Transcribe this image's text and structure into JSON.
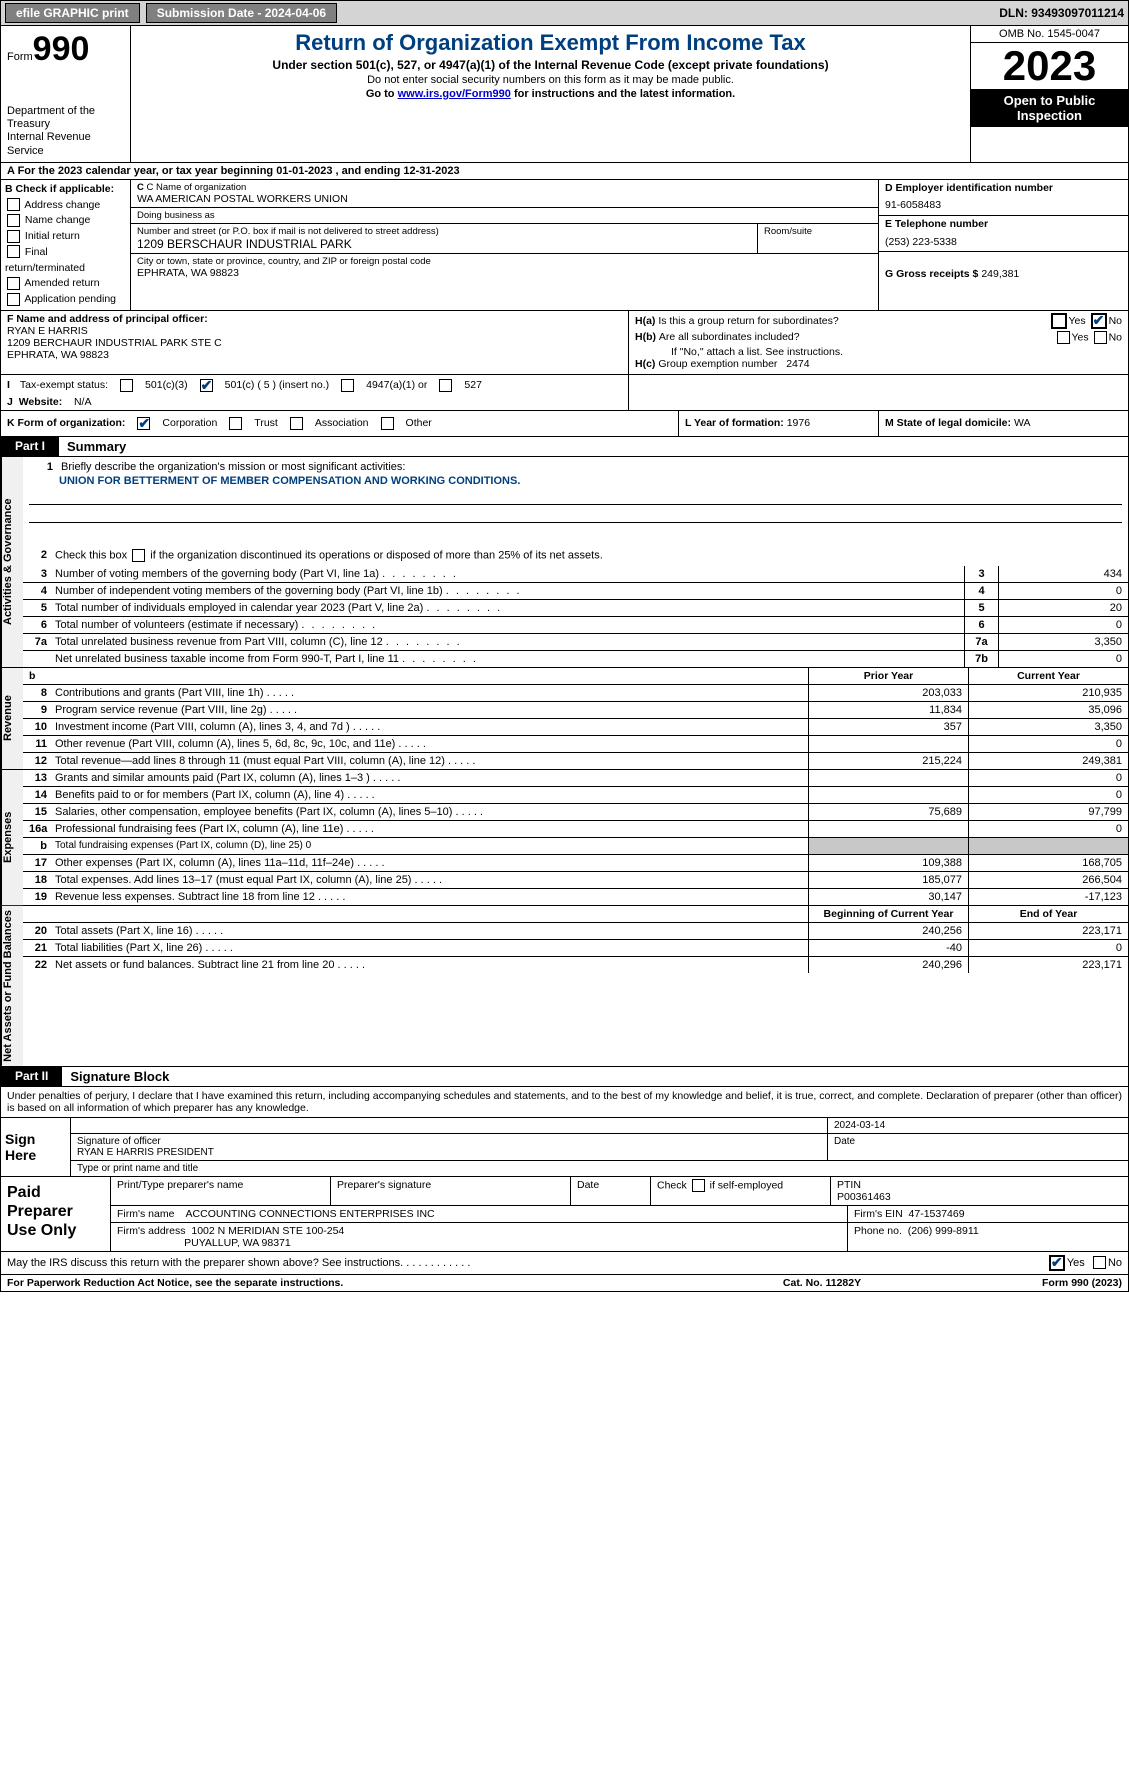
{
  "topbar": {
    "efile": "efile GRAPHIC print",
    "submission": "Submission Date - 2024-04-06",
    "dln": "DLN: 93493097011214"
  },
  "header": {
    "form_prefix": "Form",
    "form_number": "990",
    "dept": "Department of the Treasury\nInternal Revenue Service",
    "title": "Return of Organization Exempt From Income Tax",
    "sub1": "Under section 501(c), 527, or 4947(a)(1) of the Internal Revenue Code (except private foundations)",
    "sub2": "Do not enter social security numbers on this form as it may be made public.",
    "sub3_pre": "Go to ",
    "sub3_link": "www.irs.gov/Form990",
    "sub3_post": " for instructions and the latest information.",
    "omb": "OMB No. 1545-0047",
    "year": "2023",
    "inspect": "Open to Public Inspection"
  },
  "line_a": "A For the 2023 calendar year, or tax year beginning 01-01-2023   , and ending 12-31-2023",
  "b": {
    "label": "B Check if applicable:",
    "opts": [
      "Address change",
      "Name change",
      "Initial return",
      "Final return/terminated",
      "Amended return",
      "Application pending"
    ]
  },
  "c": {
    "name_label": "C Name of organization",
    "name": "WA AMERICAN POSTAL WORKERS UNION",
    "dba_label": "Doing business as",
    "dba": "",
    "street_label": "Number and street (or P.O. box if mail is not delivered to street address)",
    "street": "1209 BERSCHAUR INDUSTRIAL PARK",
    "room_label": "Room/suite",
    "room": "",
    "city_label": "City or town, state or province, country, and ZIP or foreign postal code",
    "city": "EPHRATA, WA  98823"
  },
  "d": {
    "label": "D Employer identification number",
    "value": "91-6058483"
  },
  "e": {
    "label": "E Telephone number",
    "value": "(253) 223-5338"
  },
  "g": {
    "label": "G Gross receipts $",
    "value": "249,381"
  },
  "f": {
    "label": "F  Name and address of principal officer:",
    "name": "RYAN E HARRIS",
    "addr1": "1209 BERCHAUR INDUSTRIAL PARK STE C",
    "addr2": "EPHRATA, WA  98823"
  },
  "h": {
    "a_label": "H(a)",
    "a_text": "Is this a group return for subordinates?",
    "a_yes": false,
    "a_no": true,
    "b_label": "H(b)",
    "b_text": "Are all subordinates included?",
    "b_note": "If \"No,\" attach a list. See instructions.",
    "c_label": "H(c)",
    "c_text": "Group exemption number",
    "c_value": "2474"
  },
  "i": {
    "label": "I",
    "text": "Tax-exempt status:",
    "o1": "501(c)(3)",
    "o2": "501(c) ( 5 ) (insert no.)",
    "o3": "4947(a)(1) or",
    "o4": "527",
    "o2_checked": true
  },
  "j": {
    "label": "J",
    "text": "Website:",
    "value": "N/A"
  },
  "k": {
    "label": "K Form of organization:",
    "opts": [
      "Corporation",
      "Trust",
      "Association",
      "Other"
    ],
    "checked": 0
  },
  "l": {
    "label": "L Year of formation:",
    "value": "1976"
  },
  "m": {
    "label": "M State of legal domicile:",
    "value": "WA"
  },
  "part1": {
    "label": "Part I",
    "title": "Summary",
    "mission_label": "Briefly describe the organization's mission or most significant activities:",
    "mission": "UNION FOR BETTERMENT OF MEMBER COMPENSATION AND WORKING CONDITIONS.",
    "line2": "Check this box    if the organization discontinued its operations or disposed of more than 25% of its net assets.",
    "tab_ag": "Activities & Governance",
    "tab_rev": "Revenue",
    "tab_exp": "Expenses",
    "tab_net": "Net Assets or Fund Balances",
    "rows_num": [
      {
        "n": "3",
        "t": "Number of voting members of the governing body (Part VI, line 1a)",
        "bn": "3",
        "v": "434"
      },
      {
        "n": "4",
        "t": "Number of independent voting members of the governing body (Part VI, line 1b)",
        "bn": "4",
        "v": "0"
      },
      {
        "n": "5",
        "t": "Total number of individuals employed in calendar year 2023 (Part V, line 2a)",
        "bn": "5",
        "v": "20"
      },
      {
        "n": "6",
        "t": "Total number of volunteers (estimate if necessary)",
        "bn": "6",
        "v": "0"
      },
      {
        "n": "7a",
        "t": "Total unrelated business revenue from Part VIII, column (C), line 12",
        "bn": "7a",
        "v": "3,350"
      },
      {
        "n": "",
        "t": "Net unrelated business taxable income from Form 990-T, Part I, line 11",
        "bn": "7b",
        "v": "0"
      }
    ],
    "prior_label": "Prior Year",
    "current_label": "Current Year",
    "rev_rows": [
      {
        "n": "8",
        "t": "Contributions and grants (Part VIII, line 1h)",
        "c1": "203,033",
        "c2": "210,935"
      },
      {
        "n": "9",
        "t": "Program service revenue (Part VIII, line 2g)",
        "c1": "11,834",
        "c2": "35,096"
      },
      {
        "n": "10",
        "t": "Investment income (Part VIII, column (A), lines 3, 4, and 7d )",
        "c1": "357",
        "c2": "3,350"
      },
      {
        "n": "11",
        "t": "Other revenue (Part VIII, column (A), lines 5, 6d, 8c, 9c, 10c, and 11e)",
        "c1": "",
        "c2": "0"
      },
      {
        "n": "12",
        "t": "Total revenue—add lines 8 through 11 (must equal Part VIII, column (A), line 12)",
        "c1": "215,224",
        "c2": "249,381"
      }
    ],
    "exp_rows": [
      {
        "n": "13",
        "t": "Grants and similar amounts paid (Part IX, column (A), lines 1–3 )",
        "c1": "",
        "c2": "0"
      },
      {
        "n": "14",
        "t": "Benefits paid to or for members (Part IX, column (A), line 4)",
        "c1": "",
        "c2": "0"
      },
      {
        "n": "15",
        "t": "Salaries, other compensation, employee benefits (Part IX, column (A), lines 5–10)",
        "c1": "75,689",
        "c2": "97,799"
      },
      {
        "n": "16a",
        "t": "Professional fundraising fees (Part IX, column (A), line 11e)",
        "c1": "",
        "c2": "0"
      },
      {
        "n": "b",
        "t": "Total fundraising expenses (Part IX, column (D), line 25) 0",
        "c1": "grey",
        "c2": "grey",
        "small": true
      },
      {
        "n": "17",
        "t": "Other expenses (Part IX, column (A), lines 11a–11d, 11f–24e)",
        "c1": "109,388",
        "c2": "168,705"
      },
      {
        "n": "18",
        "t": "Total expenses. Add lines 13–17 (must equal Part IX, column (A), line 25)",
        "c1": "185,077",
        "c2": "266,504"
      },
      {
        "n": "19",
        "t": "Revenue less expenses. Subtract line 18 from line 12",
        "c1": "30,147",
        "c2": "-17,123"
      }
    ],
    "begin_label": "Beginning of Current Year",
    "end_label": "End of Year",
    "net_rows": [
      {
        "n": "20",
        "t": "Total assets (Part X, line 16)",
        "c1": "240,256",
        "c2": "223,171"
      },
      {
        "n": "21",
        "t": "Total liabilities (Part X, line 26)",
        "c1": "-40",
        "c2": "0"
      },
      {
        "n": "22",
        "t": "Net assets or fund balances. Subtract line 21 from line 20",
        "c1": "240,296",
        "c2": "223,171"
      }
    ]
  },
  "part2": {
    "label": "Part II",
    "title": "Signature Block",
    "intro": "Under penalties of perjury, I declare that I have examined this return, including accompanying schedules and statements, and to the best of my knowledge and belief, it is true, correct, and complete. Declaration of preparer (other than officer) is based on all information of which preparer has any knowledge.",
    "sign_here": "Sign Here",
    "sig_officer_label": "Signature of officer",
    "sig_officer": "RYAN E HARRIS  PRESIDENT",
    "sig_type_label": "Type or print name and title",
    "sig_date_label": "Date",
    "sig_date": "2024-03-14",
    "paid_label": "Paid Preparer Use Only",
    "prep_name_label": "Print/Type preparer's name",
    "prep_sig_label": "Preparer's signature",
    "prep_date_label": "Date",
    "prep_check_label": "Check        if self-employed",
    "ptin_label": "PTIN",
    "ptin": "P00361463",
    "firm_name_label": "Firm's name",
    "firm_name": "ACCOUNTING CONNECTIONS ENTERPRISES INC",
    "firm_ein_label": "Firm's EIN",
    "firm_ein": "47-1537469",
    "firm_addr_label": "Firm's address",
    "firm_addr1": "1002 N MERIDIAN STE 100-254",
    "firm_addr2": "PUYALLUP, WA  98371",
    "firm_phone_label": "Phone no.",
    "firm_phone": "(206) 999-8911",
    "discuss": "May the IRS discuss this return with the preparer shown above? See instructions.",
    "discuss_yes": true
  },
  "footer": {
    "left": "For Paperwork Reduction Act Notice, see the separate instructions.",
    "mid": "Cat. No. 11282Y",
    "right": "Form 990 (2023)"
  },
  "yn": {
    "yes": "Yes",
    "no": "No"
  }
}
